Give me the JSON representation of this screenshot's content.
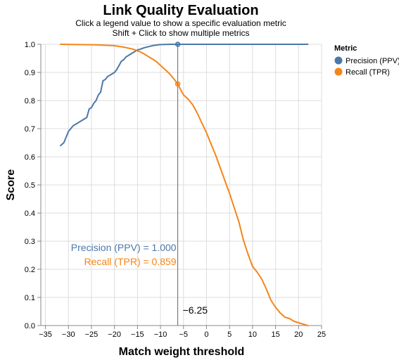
{
  "chart_data": {
    "type": "line",
    "title": "Link Quality Evaluation",
    "subtitle": [
      "Click a legend value to show a specific evaluation metric",
      "Shift + Click to show multiple metrics"
    ],
    "xlabel": "Match weight threshold",
    "ylabel": "Score",
    "xlim": [
      -36,
      25
    ],
    "ylim": [
      0,
      1
    ],
    "x_ticks": [
      -35,
      -30,
      -25,
      -20,
      -15,
      -10,
      -5,
      0,
      5,
      10,
      15,
      20,
      25
    ],
    "y_ticks": [
      0,
      0.1,
      0.2,
      0.3,
      0.4,
      0.5,
      0.6,
      0.7,
      0.8,
      0.9,
      1.0
    ],
    "grid": true,
    "legend": {
      "title": "Metric",
      "position": "top-right",
      "entries": [
        "Precision (PPV)",
        "Recall (TPR)"
      ]
    },
    "series": [
      {
        "name": "Precision (PPV)",
        "color": "#4c78a8",
        "x": [
          -31.7,
          -31.0,
          -30.5,
          -30.0,
          -29.5,
          -29.0,
          -28.5,
          -28.0,
          -27.5,
          -27.0,
          -26.5,
          -26.0,
          -25.5,
          -25.0,
          -24.5,
          -24.0,
          -23.5,
          -23.0,
          -22.5,
          -22.0,
          -21.5,
          -21.0,
          -20.5,
          -20.0,
          -19.5,
          -19.0,
          -18.5,
          -18.0,
          -17.5,
          -17.0,
          -16.5,
          -16.0,
          -15.5,
          -15.0,
          -14.5,
          -14.0,
          -13.5,
          -13.0,
          -12.5,
          -12.0,
          -11.5,
          -11.0,
          -10.5,
          -10.0,
          -9.0,
          -8.0,
          -7.0,
          -6.25,
          -5.0,
          0.0,
          5.0,
          10.0,
          15.0,
          22.0
        ],
        "values": [
          0.64,
          0.65,
          0.67,
          0.69,
          0.7,
          0.71,
          0.715,
          0.72,
          0.725,
          0.73,
          0.735,
          0.74,
          0.77,
          0.775,
          0.79,
          0.8,
          0.82,
          0.83,
          0.87,
          0.875,
          0.885,
          0.89,
          0.895,
          0.9,
          0.91,
          0.925,
          0.94,
          0.945,
          0.955,
          0.96,
          0.965,
          0.97,
          0.975,
          0.98,
          0.982,
          0.985,
          0.988,
          0.99,
          0.992,
          0.994,
          0.996,
          0.997,
          0.998,
          0.999,
          0.9995,
          1.0,
          1.0,
          1.0,
          1.0,
          1.0,
          1.0,
          1.0,
          1.0,
          1.0
        ]
      },
      {
        "name": "Recall (TPR)",
        "color": "#f58518",
        "x": [
          -31.7,
          -28.0,
          -24.0,
          -20.0,
          -18.0,
          -16.0,
          -15.0,
          -14.0,
          -13.0,
          -12.0,
          -11.0,
          -10.0,
          -9.0,
          -8.0,
          -7.0,
          -6.25,
          -5.5,
          -5.0,
          -4.0,
          -3.0,
          -2.0,
          -1.0,
          0.0,
          1.0,
          2.0,
          3.0,
          4.0,
          5.0,
          6.0,
          7.0,
          8.0,
          9.0,
          10.0,
          11.0,
          12.0,
          13.0,
          14.0,
          15.0,
          16.0,
          17.0,
          18.0,
          19.0,
          20.0,
          21.0,
          22.0
        ],
        "values": [
          1.0,
          0.999,
          0.998,
          0.995,
          0.99,
          0.983,
          0.977,
          0.97,
          0.96,
          0.95,
          0.94,
          0.925,
          0.91,
          0.895,
          0.875,
          0.859,
          0.835,
          0.82,
          0.805,
          0.785,
          0.755,
          0.72,
          0.685,
          0.645,
          0.605,
          0.56,
          0.515,
          0.47,
          0.42,
          0.37,
          0.305,
          0.255,
          0.21,
          0.19,
          0.165,
          0.13,
          0.09,
          0.065,
          0.045,
          0.03,
          0.025,
          0.015,
          0.01,
          0.005,
          0.0
        ]
      }
    ],
    "rule": {
      "x": -6.25,
      "label": "−6.25"
    },
    "readouts": [
      {
        "label": "Precision (PPV) = 1.000",
        "value": 1.0,
        "color": "#4c78a8"
      },
      {
        "label": "Recall (TPR) = 0.859",
        "value": 0.859,
        "color": "#f58518"
      }
    ]
  }
}
